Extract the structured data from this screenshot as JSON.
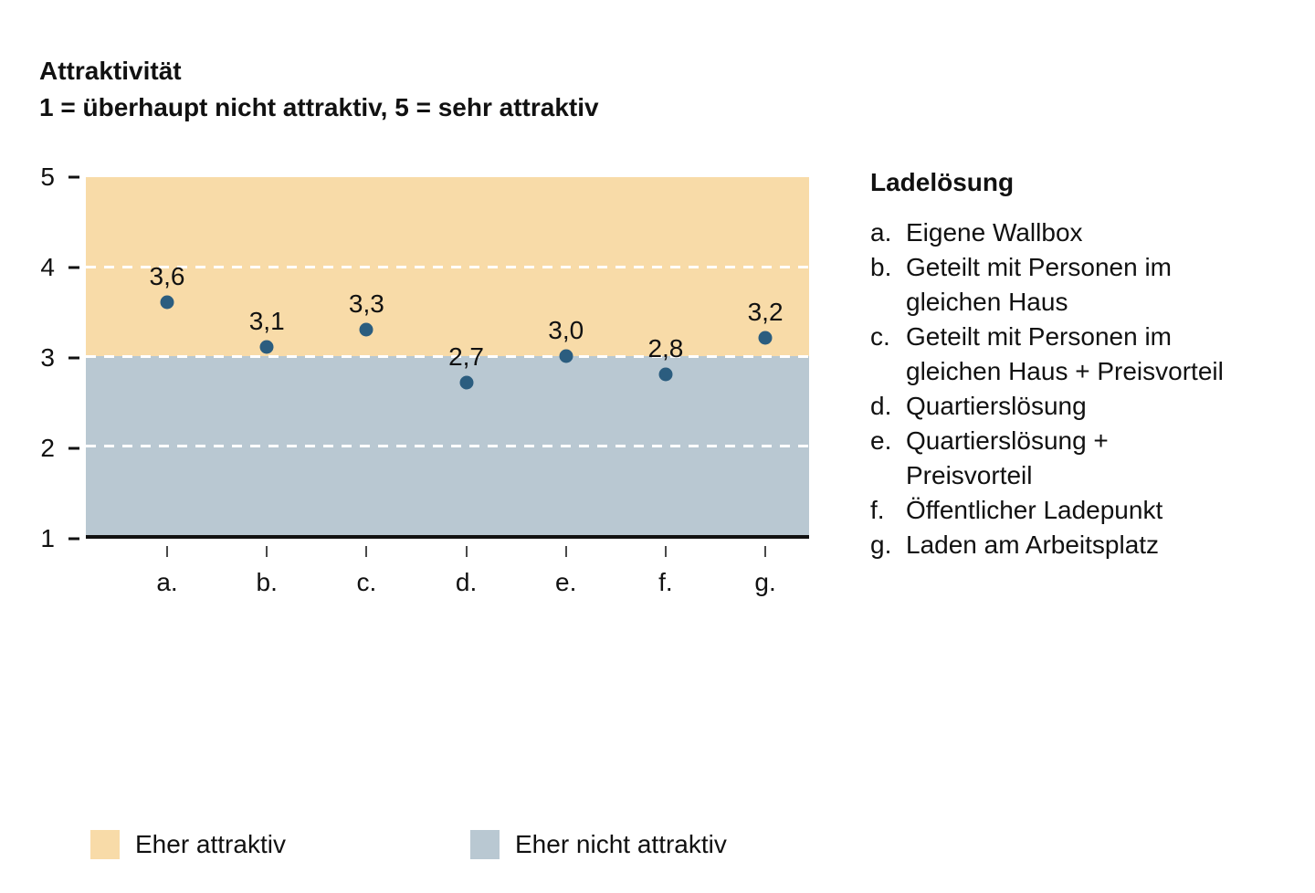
{
  "title": {
    "line1": "Attraktivität",
    "line2": "1 = überhaupt nicht attraktiv, 5 = sehr attraktiv"
  },
  "chart_data": {
    "type": "scatter",
    "categories": [
      "a.",
      "b.",
      "c.",
      "d.",
      "e.",
      "f.",
      "g."
    ],
    "values": [
      3.6,
      3.1,
      3.3,
      2.7,
      3.0,
      2.8,
      3.2
    ],
    "value_labels": [
      "3,6",
      "3,1",
      "3,3",
      "2,7",
      "3,0",
      "2,8",
      "3,2"
    ],
    "ylabel": "Attraktivität",
    "ylim": [
      1,
      5
    ],
    "yticks": [
      5,
      4,
      3,
      2,
      1
    ],
    "gridlines_at": [
      4,
      3,
      2
    ],
    "grid_style": "white dashed",
    "point_color": "#2B5D7F",
    "bands": [
      {
        "name": "attractive",
        "range": [
          3,
          5
        ],
        "color": "#F8DBA8",
        "label": "Eher attraktiv"
      },
      {
        "name": "not-attractive",
        "range": [
          1,
          3
        ],
        "color": "#B9C8D2",
        "label": "Eher nicht attraktiv"
      }
    ]
  },
  "legend": {
    "title": "Ladelösung",
    "items": [
      {
        "marker": "a.",
        "label": "Eigene Wallbox"
      },
      {
        "marker": "b.",
        "label": "Geteilt mit Personen im gleichen Haus"
      },
      {
        "marker": "c.",
        "label": "Geteilt mit Personen im gleichen Haus + Preisvorteil"
      },
      {
        "marker": "d.",
        "label": "Quartierslösung"
      },
      {
        "marker": "e.",
        "label": "Quartierslösung + Preisvorteil"
      },
      {
        "marker": "f.",
        "label": "Öffentlicher Ladepunkt"
      },
      {
        "marker": "g.",
        "label": "Laden am Arbeitsplatz"
      }
    ]
  },
  "bottom_legend": [
    {
      "label": "Eher attraktiv",
      "color": "#F8DBA8"
    },
    {
      "label": "Eher nicht attraktiv",
      "color": "#B9C8D2"
    }
  ]
}
